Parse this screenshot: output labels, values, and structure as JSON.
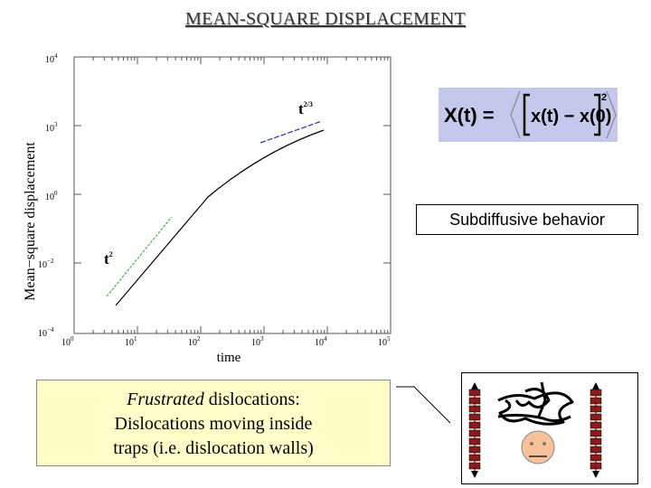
{
  "slide": {
    "title": "MEAN-SQUARE DISPLACEMENT"
  },
  "plot": {
    "y_axis_label": "Mean−square displacement",
    "x_axis_label": "time",
    "y_ticks": [
      {
        "base": "10",
        "exp": "4"
      },
      {
        "base": "10",
        "exp": "3"
      },
      {
        "base": "10",
        "exp": "0"
      },
      {
        "base": "10",
        "exp": "−2"
      },
      {
        "base": "10",
        "exp": "−4"
      }
    ],
    "x_ticks": [
      {
        "base": "10",
        "exp": "0"
      },
      {
        "base": "10",
        "exp": "1"
      },
      {
        "base": "10",
        "exp": "2"
      },
      {
        "base": "10",
        "exp": "3"
      },
      {
        "base": "10",
        "exp": "4"
      },
      {
        "base": "10",
        "exp": "5"
      }
    ],
    "annotation_late": {
      "base": "t",
      "exp": "2/3"
    },
    "annotation_early": {
      "base": "t",
      "exp": "2"
    },
    "colors": {
      "early_fit": "#3cbf3c",
      "late_fit": "#2233bb",
      "data": "#000000"
    }
  },
  "formula": {
    "lhs": "X(t) =",
    "inner": "x(t) − x(0)",
    "power": "2"
  },
  "subdiffusive_label": "Subdiffusive behavior",
  "info": {
    "line1_italic": "Frustrated",
    "line1_rest": " dislocations:",
    "line2": "Dislocations moving inside",
    "line3": "traps (i.e. dislocation walls)"
  }
}
